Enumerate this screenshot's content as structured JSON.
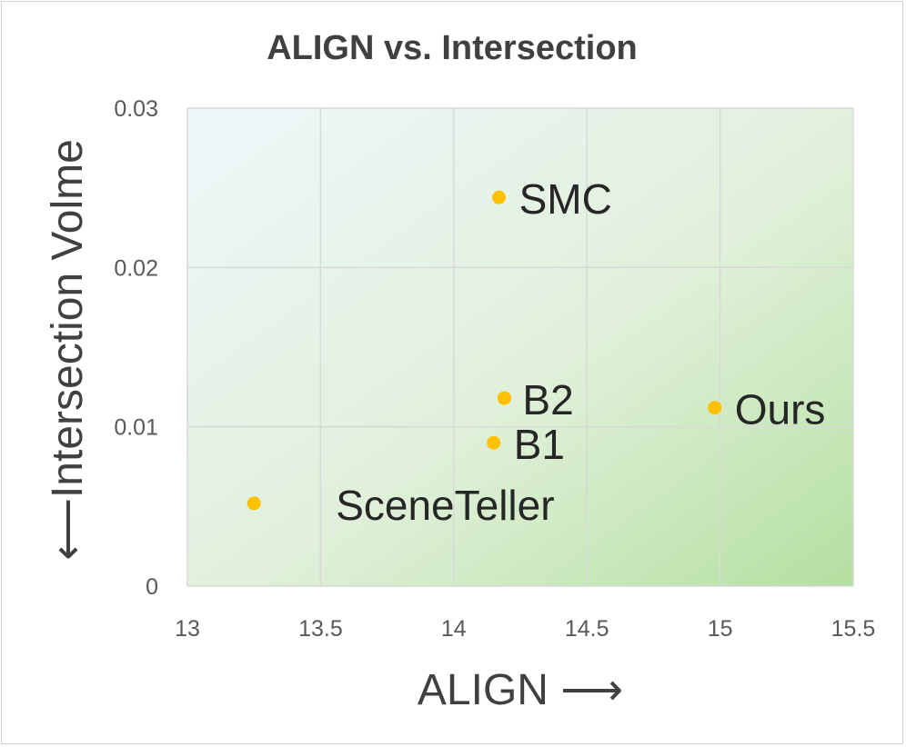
{
  "chart_data": {
    "type": "scatter",
    "title": "ALIGN vs. Intersection",
    "xlabel": "ALIGN ⟶",
    "ylabel": "⟵Intersection Volme",
    "xlim": [
      13,
      15.5
    ],
    "ylim": [
      0,
      0.03
    ],
    "x_ticks": [
      "13",
      "13.5",
      "14",
      "14.5",
      "15",
      "15.5"
    ],
    "y_ticks": [
      "0",
      "0.01",
      "0.02",
      "0.03"
    ],
    "grid": true,
    "legend": "none",
    "background": "gradient light-blue to green",
    "colors": {
      "point": "#FFC000",
      "bg_top_left": "#eef7fb",
      "bg_bottom_right": "#b4e0a0"
    },
    "points": [
      {
        "label": "SMC",
        "x": 14.17,
        "y": 0.0244
      },
      {
        "label": "B2",
        "x": 14.19,
        "y": 0.0118
      },
      {
        "label": "Ours",
        "x": 14.98,
        "y": 0.0112
      },
      {
        "label": "B1",
        "x": 14.15,
        "y": 0.009
      },
      {
        "label": "SceneTeller",
        "x": 13.25,
        "y": 0.0052
      }
    ]
  }
}
